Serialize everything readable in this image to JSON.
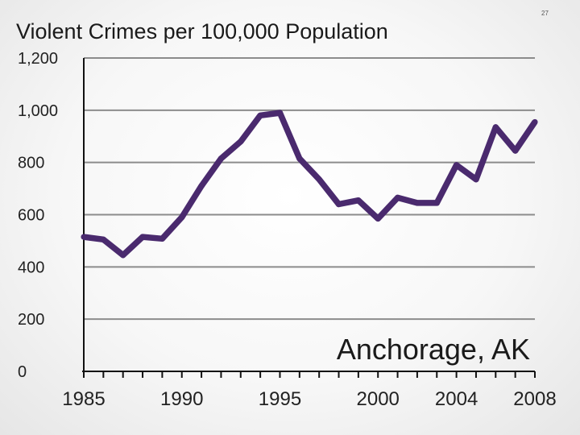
{
  "slide_number": "27",
  "chart_data": {
    "type": "line",
    "title": "Violent Crimes per 100,000 Population",
    "annotation": "Anchorage, AK",
    "xlabel": "",
    "ylabel": "",
    "xlim": [
      1985,
      2008
    ],
    "ylim": [
      0,
      1200
    ],
    "y_ticks": [
      0,
      200,
      400,
      600,
      800,
      1000,
      1200
    ],
    "y_tick_labels": [
      "0",
      "200",
      "400",
      "600",
      "800",
      "1,000",
      "1,200"
    ],
    "x_tick_labels": [
      "1985",
      "1990",
      "1995",
      "2000",
      "2004",
      "2008"
    ],
    "x_tick_positions": [
      1985,
      1990,
      1995,
      2000,
      2004,
      2008
    ],
    "grid": true,
    "color": "#4a2a6e",
    "series": [
      {
        "x": [
          1985,
          1986,
          1987,
          1988,
          1989,
          1990,
          1991,
          1992,
          1993,
          1994,
          1995,
          1996,
          1997,
          1998,
          1999,
          2000,
          2001,
          2002,
          2003,
          2004,
          2005,
          2006,
          2007,
          2008
        ],
        "values": [
          515,
          505,
          445,
          515,
          508,
          590,
          710,
          815,
          880,
          980,
          990,
          815,
          735,
          640,
          655,
          585,
          665,
          645,
          645,
          790,
          735,
          935,
          845,
          955
        ]
      }
    ]
  }
}
